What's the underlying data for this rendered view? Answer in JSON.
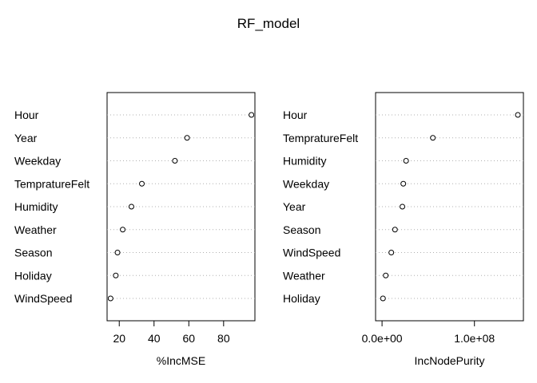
{
  "figure": {
    "title": "RF_model"
  },
  "chart_data": [
    {
      "type": "scatter",
      "subtype": "dotchart",
      "xlabel": "%IncMSE",
      "ylabel": "",
      "xlim": [
        13,
        98
      ],
      "x_ticks": [
        20,
        40,
        60,
        80
      ],
      "x_tick_labels": [
        "20",
        "40",
        "60",
        "80"
      ],
      "categories": [
        "Hour",
        "Year",
        "Weekday",
        "TempratureFelt",
        "Humidity",
        "Weather",
        "Season",
        "Holiday",
        "WindSpeed"
      ],
      "values": [
        96,
        59,
        52,
        33,
        27,
        22,
        19,
        18,
        15
      ],
      "grid": "dotted horizontal",
      "legend": "none"
    },
    {
      "type": "scatter",
      "subtype": "dotchart",
      "xlabel": "IncNodePurity",
      "ylabel": "",
      "xlim": [
        -7000000,
        153000000
      ],
      "x_ticks": [
        0,
        100000000
      ],
      "x_tick_labels": [
        "0.0e+00",
        "1.0e+08"
      ],
      "categories": [
        "Hour",
        "TempratureFelt",
        "Humidity",
        "Weekday",
        "Year",
        "Season",
        "WindSpeed",
        "Weather",
        "Holiday"
      ],
      "values": [
        147000000,
        55000000,
        26000000,
        23000000,
        22000000,
        14000000,
        10000000,
        4000000,
        1000000
      ],
      "grid": "dotted horizontal",
      "legend": "none"
    }
  ]
}
